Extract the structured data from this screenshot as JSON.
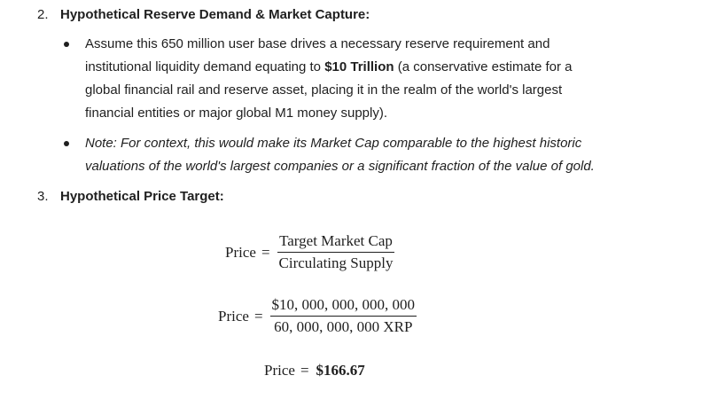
{
  "item2": {
    "number": "2.",
    "heading": "Hypothetical Reserve Demand & Market Capture:",
    "bullet1": {
      "line1": "Assume this 650 million user base drives a necessary reserve requirement and",
      "line2_pre": "institutional liquidity demand equating to ",
      "line2_bold": "$10 Trillion",
      "line2_post": " (a conservative estimate for a",
      "line3": "global financial rail and reserve asset, placing it in the realm of the world's largest",
      "line4": "financial entities or major global M1 money supply)."
    },
    "bullet2": {
      "line1": "Note: For context, this would make its Market Cap comparable to the highest historic",
      "line2": "valuations of the world's largest companies or a significant fraction of the value of gold."
    }
  },
  "item3": {
    "number": "3.",
    "heading": "Hypothetical Price Target:"
  },
  "formula1": {
    "lhs": "Price",
    "eq": "=",
    "numerator": "Target Market Cap",
    "denominator": "Circulating Supply"
  },
  "formula2": {
    "lhs": "Price",
    "eq": "=",
    "numerator": "$10, 000, 000, 000, 000",
    "denominator": "60, 000, 000, 000 XRP"
  },
  "formula3": {
    "lhs": "Price",
    "eq": "=",
    "result": "$166.67"
  }
}
